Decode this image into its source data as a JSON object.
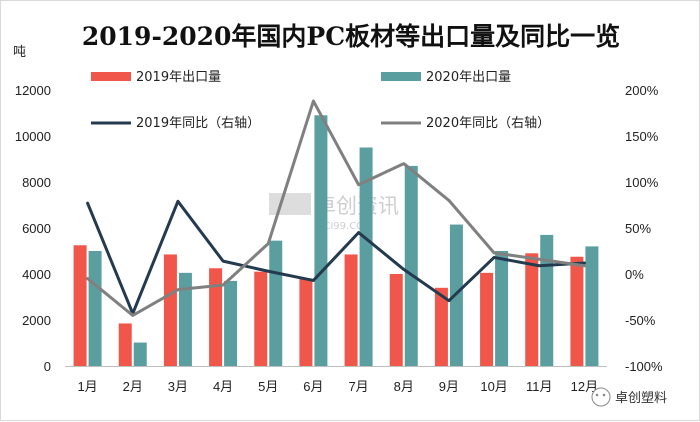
{
  "chart_data": {
    "type": "bar+line",
    "title": "2019-2020年国内PC板材等出口量及同比一览",
    "ylabel": "吨",
    "categories": [
      "1月",
      "2月",
      "3月",
      "4月",
      "5月",
      "6月",
      "7月",
      "8月",
      "9月",
      "10月",
      "11月",
      "12月"
    ],
    "ylim": [
      0,
      12000
    ],
    "yticks": [
      0,
      2000,
      4000,
      6000,
      8000,
      10000,
      12000
    ],
    "y2lim": [
      -100,
      200
    ],
    "y2ticks": [
      -100,
      -50,
      0,
      50,
      100,
      150,
      200
    ],
    "y2tick_suffix": "%",
    "bar_series": [
      {
        "name": "2019年出口量",
        "color": "#f0574a",
        "values": [
          5250,
          1850,
          4850,
          4250,
          4100,
          3800,
          4850,
          4000,
          3400,
          4050,
          4900,
          4750
        ]
      },
      {
        "name": "2020年出口量",
        "color": "#5b9ea0",
        "values": [
          5000,
          1020,
          4050,
          3700,
          5450,
          10900,
          9500,
          8700,
          6150,
          5000,
          5700,
          5200
        ]
      }
    ],
    "line_series": [
      {
        "name": "2019年同比（右轴）",
        "color": "#243a4e",
        "axis": "right",
        "values": [
          77,
          -43,
          79,
          14,
          3,
          -7,
          45,
          5,
          -29,
          18,
          9,
          12
        ]
      },
      {
        "name": "2020年同比（右轴）",
        "color": "#808080",
        "axis": "right",
        "values": [
          -5,
          -45,
          -17,
          -12,
          33,
          188,
          97,
          120,
          80,
          23,
          16,
          9
        ]
      }
    ]
  },
  "watermark": {
    "main": "卓创资讯",
    "sub": "SCI99.COM"
  },
  "brand": {
    "label": "卓创塑料"
  }
}
